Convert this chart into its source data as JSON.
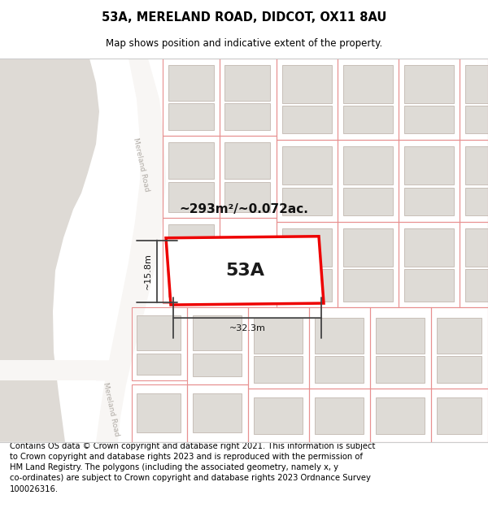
{
  "title": "53A, MERELAND ROAD, DIDCOT, OX11 8AU",
  "subtitle": "Map shows position and indicative extent of the property.",
  "footer": "Contains OS data © Crown copyright and database right 2021. This information is subject\nto Crown copyright and database rights 2023 and is reproduced with the permission of\nHM Land Registry. The polygons (including the associated geometry, namely x, y\nco-ordinates) are subject to Crown copyright and database rights 2023 Ordnance Survey\n100026316.",
  "title_fontsize": 10.5,
  "subtitle_fontsize": 8.5,
  "footer_fontsize": 7.2,
  "plot_label": "53A",
  "area_text": "~293m²/~0.072ac.",
  "width_text": "~32.3m",
  "height_text": "~15.8m",
  "map_bg": "#ede8e3",
  "road_white": "#f8f6f4",
  "left_grey": "#dedad4",
  "building_fill": "#dedbd6",
  "building_edge": "#c8bfb8",
  "parcel_edge": "#e89090",
  "highlight_fill": "#ffffff",
  "highlight_edge": "#ee0000",
  "dim_color": "#444444",
  "road_label_color": "#b0aba5",
  "text_color": "#111111"
}
